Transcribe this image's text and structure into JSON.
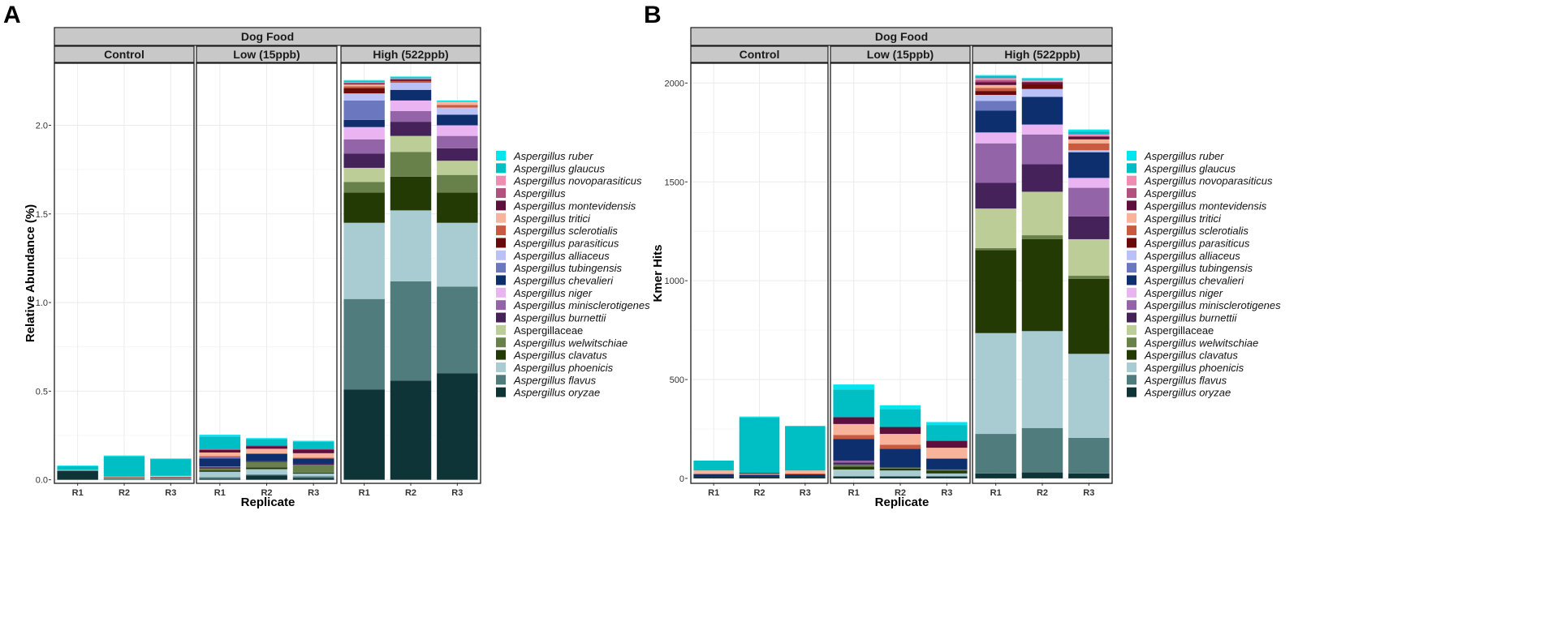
{
  "colors": {
    "strip_fill": "#c8c8c8",
    "grid": "#ebebeb",
    "border": "#333333"
  },
  "legend": [
    {
      "name": "Aspergillus ruber",
      "color": "#00e5ee",
      "italic": true
    },
    {
      "name": "Aspergillus glaucus",
      "color": "#00bfc4",
      "italic": true
    },
    {
      "name": "Aspergillus novoparasiticus",
      "color": "#f08cb4",
      "italic": true
    },
    {
      "name": "Aspergillus",
      "color": "#b4507e",
      "italic": true
    },
    {
      "name": "Aspergillus montevidensis",
      "color": "#5e0f3c",
      "italic": true
    },
    {
      "name": "Aspergillus tritici",
      "color": "#f9b39a",
      "italic": true
    },
    {
      "name": "Aspergillus sclerotialis",
      "color": "#c85a40",
      "italic": true
    },
    {
      "name": "Aspergillus parasiticus",
      "color": "#6b0a0a",
      "italic": true
    },
    {
      "name": "Aspergillus alliaceus",
      "color": "#b9c1f6",
      "italic": true
    },
    {
      "name": "Aspergillus tubingensis",
      "color": "#6b78c0",
      "italic": true
    },
    {
      "name": "Aspergillus chevalieri",
      "color": "#0e2f6e",
      "italic": true
    },
    {
      "name": "Aspergillus niger",
      "color": "#eab4f2",
      "italic": true
    },
    {
      "name": "Aspergillus minisclerotigenes",
      "color": "#9364a8",
      "italic": true
    },
    {
      "name": "Aspergillus burnettii",
      "color": "#45225a",
      "italic": true
    },
    {
      "name": "Aspergillaceae",
      "color": "#bccd98",
      "italic": false
    },
    {
      "name": "Aspergillus welwitschiae",
      "color": "#68804a",
      "italic": true
    },
    {
      "name": "Aspergillus clavatus",
      "color": "#233a05",
      "italic": true
    },
    {
      "name": "Aspergillus phoenicis",
      "color": "#a8ccd2",
      "italic": true
    },
    {
      "name": "Aspergillus flavus",
      "color": "#507c7d",
      "italic": true
    },
    {
      "name": "Aspergillus oryzae",
      "color": "#0f3438",
      "italic": true
    }
  ],
  "chart_data": [
    {
      "panel_label": "A",
      "type": "stacked-bar",
      "title": "Dog Food",
      "xlabel": "Replicate",
      "ylabel": "Relative Abundance (%)",
      "ylim": [
        -0.02,
        2.35
      ],
      "yticks": [
        0.0,
        0.5,
        1.0,
        1.5,
        2.0
      ],
      "ytick_labels": [
        "0.0",
        "0.5",
        "1.0",
        "1.5",
        "2.0"
      ],
      "facets": [
        {
          "label": "Control",
          "bars": [
            {
              "x": "R1",
              "values": {
                "Aspergillus oryzae": 0.05,
                "Aspergillus flavus": 0.003,
                "Aspergillus phoenicis": 0.003,
                "Aspergillus ruber": 0.004,
                "Aspergillus glaucus": 0.02
              }
            },
            {
              "x": "R2",
              "values": {
                "Aspergillus oryzae": 0.004,
                "Aspergillus phoenicis": 0.004,
                "Aspergillus chevalieri": 0.005,
                "Aspergillus tritici": 0.004,
                "Aspergillus ruber": 0.005,
                "Aspergillus glaucus": 0.115
              }
            },
            {
              "x": "R3",
              "values": {
                "Aspergillus oryzae": 0.004,
                "Aspergillus phoenicis": 0.004,
                "Aspergillus chevalieri": 0.005,
                "Aspergillus tritici": 0.006,
                "Aspergillus sclerotialis": 0.003,
                "Aspergillus ruber": 0.003,
                "Aspergillus glaucus": 0.095
              }
            }
          ]
        },
        {
          "label": "Low (15ppb)",
          "bars": [
            {
              "x": "R1",
              "values": {
                "Aspergillus oryzae": 0.005,
                "Aspergillus flavus": 0.01,
                "Aspergillus phoenicis": 0.03,
                "Aspergillus clavatus": 0.008,
                "Aspergillus welwitschiae": 0.01,
                "Aspergillus burnettii": 0.008,
                "Aspergillus minisclerotigenes": 0.005,
                "Aspergillus chevalieri": 0.045,
                "Aspergillus tubingensis": 0.005,
                "Aspergillus sclerotialis": 0.008,
                "Aspergillus tritici": 0.02,
                "Aspergillus montevidensis": 0.015,
                "Aspergillus": 0.005,
                "Aspergillus glaucus": 0.07,
                "Aspergillus ruber": 0.01
              }
            },
            {
              "x": "R2",
              "values": {
                "Aspergillus oryzae": 0.025,
                "Aspergillus flavus": 0.005,
                "Aspergillus phoenicis": 0.03,
                "Aspergillus clavatus": 0.01,
                "Aspergillus welwitschiae": 0.03,
                "Aspergillus burnettii": 0.005,
                "Aspergillus chevalieri": 0.04,
                "Aspergillus sclerotialis": 0.005,
                "Aspergillus tritici": 0.025,
                "Aspergillus montevidensis": 0.015,
                "Aspergillus": 0.005,
                "Aspergillus glaucus": 0.035,
                "Aspergillus ruber": 0.005
              }
            },
            {
              "x": "R3",
              "values": {
                "Aspergillus oryzae": 0.01,
                "Aspergillus flavus": 0.01,
                "Aspergillus phoenicis": 0.015,
                "Aspergillus clavatus": 0.005,
                "Aspergillus welwitschiae": 0.045,
                "Aspergillus burnettii": 0.005,
                "Aspergillus chevalieri": 0.03,
                "Aspergillus sclerotialis": 0.005,
                "Aspergillus tritici": 0.025,
                "Aspergillus montevidensis": 0.02,
                "Aspergillus": 0.005,
                "Aspergillus glaucus": 0.04,
                "Aspergillus ruber": 0.005
              }
            }
          ]
        },
        {
          "label": "High (522ppb)",
          "bars": [
            {
              "x": "R1",
              "values": {
                "Aspergillus oryzae": 0.51,
                "Aspergillus flavus": 0.51,
                "Aspergillus phoenicis": 0.43,
                "Aspergillus clavatus": 0.17,
                "Aspergillus welwitschiae": 0.06,
                "Aspergillaceae": 0.08,
                "Aspergillus burnettii": 0.08,
                "Aspergillus minisclerotigenes": 0.08,
                "Aspergillus niger": 0.07,
                "Aspergillus chevalieri": 0.04,
                "Aspergillus tubingensis": 0.11,
                "Aspergillus alliaceus": 0.04,
                "Aspergillus parasiticus": 0.03,
                "Aspergillus sclerotialis": 0.01,
                "Aspergillus tritici": 0.01,
                "Aspergillus montevidensis": 0.005,
                "Aspergillus": 0.005,
                "Aspergillus novoparasiticus": 0.005,
                "Aspergillus glaucus": 0.005,
                "Aspergillus ruber": 0.005
              }
            },
            {
              "x": "R2",
              "values": {
                "Aspergillus oryzae": 0.56,
                "Aspergillus flavus": 0.56,
                "Aspergillus phoenicis": 0.4,
                "Aspergillus clavatus": 0.19,
                "Aspergillus welwitschiae": 0.14,
                "Aspergillaceae": 0.09,
                "Aspergillus burnettii": 0.08,
                "Aspergillus minisclerotigenes": 0.06,
                "Aspergillus niger": 0.06,
                "Aspergillus chevalieri": 0.06,
                "Aspergillus alliaceus": 0.04,
                "Aspergillus sclerotialis": 0.01,
                "Aspergillus montevidensis": 0.01,
                "Aspergillus novoparasiticus": 0.005,
                "Aspergillus glaucus": 0.005,
                "Aspergillus ruber": 0.005
              }
            },
            {
              "x": "R3",
              "values": {
                "Aspergillus oryzae": 0.6,
                "Aspergillus flavus": 0.49,
                "Aspergillus phoenicis": 0.36,
                "Aspergillus clavatus": 0.17,
                "Aspergillus welwitschiae": 0.1,
                "Aspergillaceae": 0.08,
                "Aspergillus burnettii": 0.07,
                "Aspergillus minisclerotigenes": 0.07,
                "Aspergillus niger": 0.06,
                "Aspergillus chevalieri": 0.06,
                "Aspergillus alliaceus": 0.04,
                "Aspergillus tritici": 0.015,
                "Aspergillus sclerotialis": 0.015,
                "Aspergillus novoparasiticus": 0.005,
                "Aspergillus ruber": 0.005
              }
            }
          ]
        }
      ]
    },
    {
      "panel_label": "B",
      "type": "stacked-bar",
      "title": "Dog Food",
      "xlabel": "Replicate",
      "ylabel": "Kmer Hits",
      "ylim": [
        -25,
        2100
      ],
      "yticks": [
        0,
        500,
        1000,
        1500,
        2000
      ],
      "ytick_labels": [
        "0",
        "500",
        "1000",
        "1500",
        "2000"
      ],
      "facets": [
        {
          "label": "Control",
          "bars": [
            {
              "x": "R1",
              "values": {
                "Aspergillus oryzae": 10,
                "Aspergillus chevalieri": 12,
                "Aspergillus tritici": 18,
                "Aspergillus glaucus": 50
              }
            },
            {
              "x": "R2",
              "values": {
                "Aspergillus oryzae": 8,
                "Aspergillus chevalieri": 10,
                "Aspergillus tritici": 5,
                "Aspergillus montevidensis": 5,
                "Aspergillus glaucus": 280,
                "Aspergillus ruber": 5
              }
            },
            {
              "x": "R3",
              "values": {
                "Aspergillus oryzae": 10,
                "Aspergillus chevalieri": 10,
                "Aspergillus tritici": 15,
                "Aspergillus sclerotialis": 5,
                "Aspergillus glaucus": 225
              }
            }
          ]
        },
        {
          "label": "Low (15ppb)",
          "bars": [
            {
              "x": "R1",
              "values": {
                "Aspergillus oryzae": 10,
                "Aspergillus phoenicis": 35,
                "Aspergillus clavatus": 15,
                "Aspergillus welwitschiae": 10,
                "Aspergillus burnettii": 10,
                "Aspergillus minisclerotigenes": 10,
                "Aspergillus chevalieri": 110,
                "Aspergillus sclerotialis": 20,
                "Aspergillus tritici": 55,
                "Aspergillus montevidensis": 35,
                "Aspergillus glaucus": 140,
                "Aspergillus ruber": 25
              }
            },
            {
              "x": "R2",
              "values": {
                "Aspergillus oryzae": 10,
                "Aspergillus phoenicis": 30,
                "Aspergillus clavatus": 10,
                "Aspergillus welwitschiae": 5,
                "Aspergillus chevalieri": 95,
                "Aspergillus sclerotialis": 20,
                "Aspergillus tritici": 55,
                "Aspergillus montevidensis": 35,
                "Aspergillus glaucus": 90,
                "Aspergillus ruber": 20
              }
            },
            {
              "x": "R3",
              "values": {
                "Aspergillus oryzae": 10,
                "Aspergillus phoenicis": 15,
                "Aspergillus clavatus": 15,
                "Aspergillus welwitschiae": 5,
                "Aspergillus chevalieri": 55,
                "Aspergillus tritici": 55,
                "Aspergillus montevidensis": 35,
                "Aspergillus glaucus": 80,
                "Aspergillus ruber": 15
              }
            }
          ]
        },
        {
          "label": "High (522ppb)",
          "bars": [
            {
              "x": "R1",
              "values": {
                "Aspergillus oryzae": 25,
                "Aspergillus flavus": 200,
                "Aspergillus phoenicis": 510,
                "Aspergillus clavatus": 420,
                "Aspergillus welwitschiae": 10,
                "Aspergillaceae": 200,
                "Aspergillus burnettii": 130,
                "Aspergillus minisclerotigenes": 200,
                "Aspergillus niger": 55,
                "Aspergillus chevalieri": 110,
                "Aspergillus tubingensis": 50,
                "Aspergillus alliaceus": 30,
                "Aspergillus parasiticus": 20,
                "Aspergillus sclerotialis": 15,
                "Aspergillus tritici": 15,
                "Aspergillus montevidensis": 15,
                "Aspergillus": 10,
                "Aspergillus novoparasiticus": 10,
                "Aspergillus glaucus": 10,
                "Aspergillus ruber": 5
              }
            },
            {
              "x": "R2",
              "values": {
                "Aspergillus oryzae": 30,
                "Aspergillus flavus": 225,
                "Aspergillus phoenicis": 490,
                "Aspergillus clavatus": 465,
                "Aspergillus welwitschiae": 20,
                "Aspergillaceae": 220,
                "Aspergillus burnettii": 140,
                "Aspergillus minisclerotigenes": 150,
                "Aspergillus niger": 50,
                "Aspergillus chevalieri": 140,
                "Aspergillus alliaceus": 40,
                "Aspergillus parasiticus": 25,
                "Aspergillus montevidensis": 10,
                "Aspergillus novoparasiticus": 10,
                "Aspergillus glaucus": 5,
                "Aspergillus ruber": 5
              }
            },
            {
              "x": "R3",
              "values": {
                "Aspergillus oryzae": 25,
                "Aspergillus flavus": 180,
                "Aspergillus phoenicis": 425,
                "Aspergillus clavatus": 380,
                "Aspergillus welwitschiae": 15,
                "Aspergillaceae": 185,
                "Aspergillus burnettii": 115,
                "Aspergillus minisclerotigenes": 145,
                "Aspergillus niger": 50,
                "Aspergillus chevalieri": 130,
                "Aspergillus alliaceus": 10,
                "Aspergillus sclerotialis": 35,
                "Aspergillus tritici": 20,
                "Aspergillus montevidensis": 15,
                "Aspergillus novoparasiticus": 10,
                "Aspergillus glaucus": 15,
                "Aspergillus ruber": 10
              }
            }
          ]
        }
      ]
    }
  ]
}
